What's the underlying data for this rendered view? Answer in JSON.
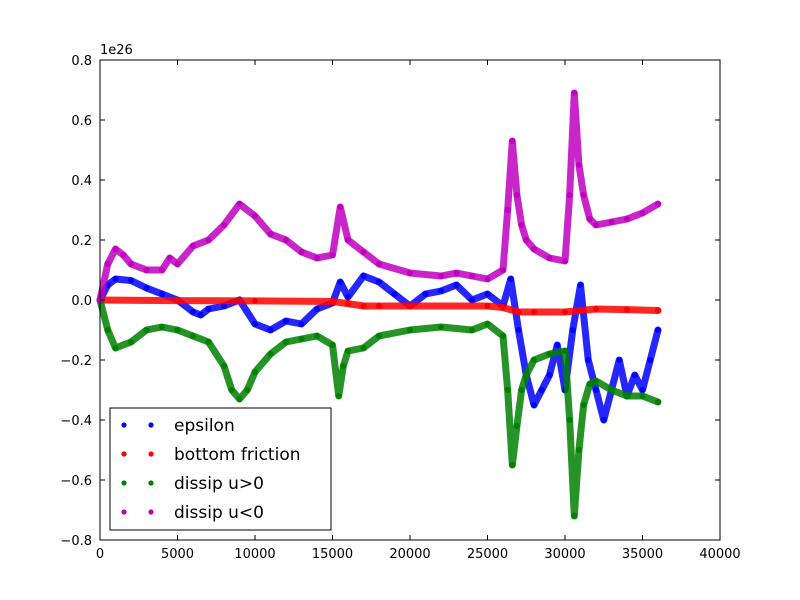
{
  "chart_data": {
    "type": "scatter",
    "exponent_label": "1e26",
    "xlim": [
      0,
      40000
    ],
    "ylim": [
      -0.8,
      0.8
    ],
    "x_ticks": [
      "0",
      "5000",
      "10000",
      "15000",
      "20000",
      "25000",
      "30000",
      "35000",
      "40000"
    ],
    "y_ticks": [
      "−0.8",
      "−0.6",
      "−0.4",
      "−0.2",
      "0.0",
      "0.2",
      "0.4",
      "0.6",
      "0.8"
    ],
    "grid": false,
    "legend_position": "lower-left",
    "series": [
      {
        "name": "epsilon",
        "color": "#0000ff",
        "x": [
          0,
          500,
          1000,
          2000,
          3000,
          4000,
          5000,
          6000,
          6500,
          7000,
          8000,
          9000,
          10000,
          11000,
          12000,
          13000,
          14000,
          15000,
          15500,
          16000,
          17000,
          18000,
          19000,
          20000,
          21000,
          22000,
          23000,
          24000,
          25000,
          26000,
          26500,
          27000,
          27500,
          28000,
          28500,
          29000,
          29500,
          30000,
          30500,
          31000,
          31500,
          32000,
          32500,
          33000,
          33500,
          34000,
          34500,
          35000,
          35500,
          36000
        ],
        "y": [
          0.0,
          0.05,
          0.07,
          0.065,
          0.04,
          0.02,
          0.0,
          -0.04,
          -0.05,
          -0.03,
          -0.02,
          0.0,
          -0.08,
          -0.1,
          -0.07,
          -0.08,
          -0.03,
          -0.01,
          0.06,
          0.01,
          0.08,
          0.06,
          0.02,
          -0.02,
          0.02,
          0.03,
          0.05,
          0.0,
          0.02,
          -0.02,
          0.07,
          -0.1,
          -0.25,
          -0.35,
          -0.3,
          -0.25,
          -0.15,
          -0.3,
          -0.1,
          0.05,
          -0.2,
          -0.3,
          -0.4,
          -0.3,
          -0.2,
          -0.32,
          -0.25,
          -0.3,
          -0.2,
          -0.1
        ]
      },
      {
        "name": "bottom friction",
        "color": "#ff0000",
        "x": [
          0,
          5000,
          10000,
          15000,
          16000,
          17000,
          18000,
          20000,
          25000,
          26000,
          27000,
          28000,
          30000,
          31000,
          32000,
          34000,
          36000
        ],
        "y": [
          0.0,
          -0.002,
          -0.003,
          -0.005,
          -0.012,
          -0.02,
          -0.02,
          -0.02,
          -0.02,
          -0.025,
          -0.04,
          -0.04,
          -0.04,
          -0.035,
          -0.03,
          -0.032,
          -0.035
        ]
      },
      {
        "name": "dissip u>0",
        "color": "#008000",
        "x": [
          0,
          500,
          1000,
          2000,
          3000,
          4000,
          5000,
          6000,
          7000,
          8000,
          8500,
          9000,
          9500,
          10000,
          11000,
          12000,
          13000,
          14000,
          15000,
          15400,
          15700,
          16000,
          17000,
          18000,
          20000,
          22000,
          24000,
          25000,
          26000,
          26300,
          26600,
          26900,
          27200,
          27500,
          28000,
          29000,
          30000,
          30300,
          30600,
          30900,
          31200,
          31600,
          32000,
          33000,
          34000,
          35000,
          36000
        ],
        "y": [
          0.0,
          -0.1,
          -0.16,
          -0.14,
          -0.1,
          -0.09,
          -0.1,
          -0.12,
          -0.14,
          -0.22,
          -0.3,
          -0.33,
          -0.3,
          -0.24,
          -0.18,
          -0.14,
          -0.13,
          -0.12,
          -0.15,
          -0.32,
          -0.22,
          -0.17,
          -0.16,
          -0.12,
          -0.1,
          -0.09,
          -0.1,
          -0.08,
          -0.12,
          -0.3,
          -0.55,
          -0.42,
          -0.3,
          -0.25,
          -0.2,
          -0.18,
          -0.17,
          -0.4,
          -0.72,
          -0.5,
          -0.35,
          -0.28,
          -0.27,
          -0.3,
          -0.32,
          -0.32,
          -0.34
        ]
      },
      {
        "name": "dissip u<0",
        "color": "#bf00bf",
        "x": [
          0,
          500,
          1000,
          1500,
          2000,
          3000,
          4000,
          4500,
          5000,
          6000,
          7000,
          8000,
          9000,
          10000,
          11000,
          12000,
          13000,
          14000,
          15000,
          15500,
          16000,
          17000,
          18000,
          20000,
          22000,
          23000,
          24000,
          25000,
          26000,
          26300,
          26600,
          26900,
          27200,
          27500,
          28000,
          29000,
          30000,
          30300,
          30600,
          30900,
          31200,
          31600,
          32000,
          33000,
          34000,
          35000,
          36000
        ],
        "y": [
          0.0,
          0.12,
          0.17,
          0.15,
          0.12,
          0.1,
          0.1,
          0.14,
          0.12,
          0.18,
          0.2,
          0.25,
          0.32,
          0.28,
          0.22,
          0.2,
          0.16,
          0.14,
          0.15,
          0.31,
          0.2,
          0.16,
          0.12,
          0.09,
          0.08,
          0.09,
          0.08,
          0.07,
          0.1,
          0.3,
          0.53,
          0.35,
          0.25,
          0.2,
          0.17,
          0.14,
          0.13,
          0.35,
          0.69,
          0.45,
          0.35,
          0.27,
          0.25,
          0.26,
          0.27,
          0.29,
          0.32
        ]
      }
    ]
  }
}
